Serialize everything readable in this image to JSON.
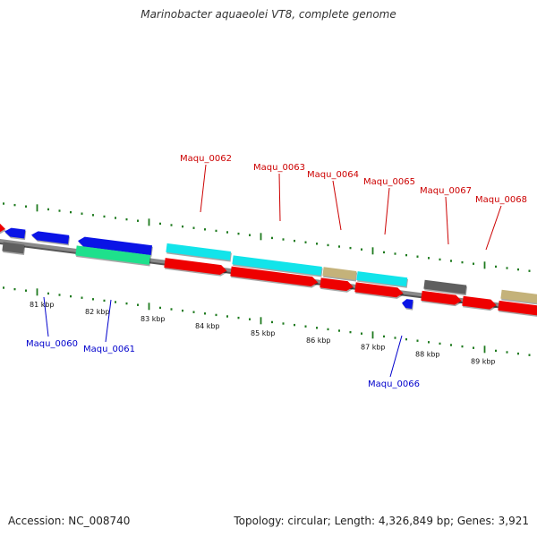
{
  "title": "Marinobacter aquaeolei VT8, complete genome",
  "footer": {
    "accession": "Accession: NC_008740",
    "stats": "Topology: circular; Length: 4,326,849 bp; Genes: 3,921"
  },
  "colors": {
    "backbone": "#8a8a8a",
    "tick": "#1e7a1e",
    "label_top": "#cc0000",
    "label_bottom": "#0000cc",
    "cyan": "#12e4ea",
    "red": "#ee0000",
    "khaki": "#c4b27a",
    "gray": "#5f5f5f",
    "blue": "#0a14e6",
    "green": "#1ee08c"
  },
  "scale": {
    "unit": "kbp",
    "ticks": [
      "81 kbp",
      "82 kbp",
      "83 kbp",
      "84 kbp",
      "85 kbp",
      "86 kbp",
      "87 kbp",
      "88 kbp",
      "89 kbp"
    ]
  },
  "genes": {
    "labeled_top": [
      "Maqu_0062",
      "Maqu_0063",
      "Maqu_0064",
      "Maqu_0065",
      "Maqu_0067",
      "Maqu_0068"
    ],
    "labeled_bottom": [
      "Maqu_0060",
      "Maqu_0061",
      "Maqu_0066"
    ]
  }
}
